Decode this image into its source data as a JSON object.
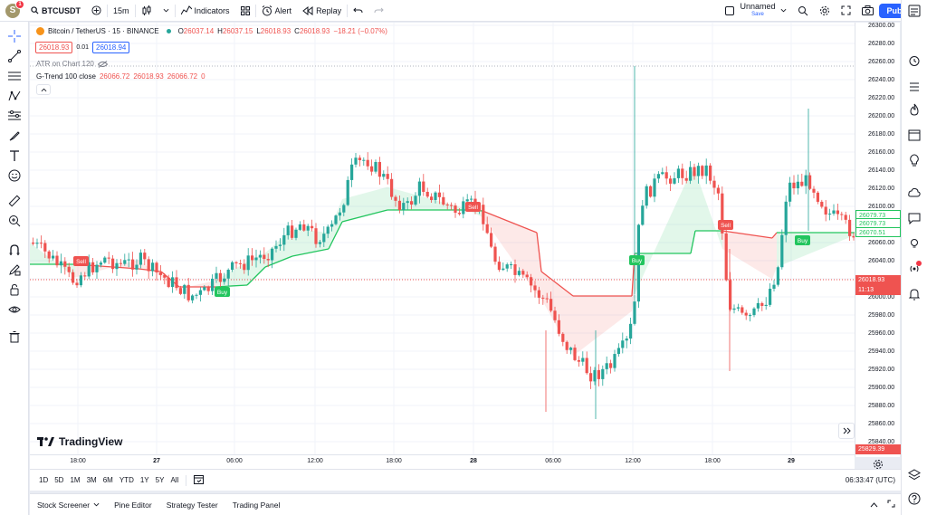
{
  "topbar": {
    "avatar_letter": "S",
    "notif_count": "1",
    "symbol": "BTCUSDT",
    "interval": "15m",
    "indicators_label": "Indicators",
    "alert_label": "Alert",
    "replay_label": "Replay",
    "layout_name": "Unnamed",
    "layout_status": "Save",
    "publish_label": "Publish"
  },
  "legend": {
    "title": "Bitcoin / TetherUS · 15 · BINANCE",
    "o_label": "O",
    "o": "26037.14",
    "h_label": "H",
    "h": "26037.15",
    "l_label": "L",
    "l": "26018.93",
    "c_label": "C",
    "c": "26018.93",
    "change": "−18.21 (−0.07%)",
    "bid": "26018.93",
    "spread": "0.01",
    "ask": "26018.94",
    "atr_label": "ATR on Chart 120",
    "gtrend_label": "G-Trend 100 close",
    "gtrend_v1": "26066.72",
    "gtrend_v2": "26018.93",
    "gtrend_v3": "26066.72",
    "gtrend_v4": "0"
  },
  "watermark": "TradingView",
  "price_scale": {
    "ticks": [
      "26300.00",
      "26280.00",
      "26260.00",
      "26240.00",
      "26220.00",
      "26200.00",
      "26180.00",
      "26160.00",
      "26140.00",
      "26120.00",
      "26100.00",
      "26080.00",
      "26060.00",
      "26040.00",
      "26020.00",
      "26000.00",
      "25980.00",
      "25960.00",
      "25940.00",
      "25920.00",
      "25900.00",
      "25880.00",
      "25860.00",
      "25840.00"
    ],
    "label_green1": "26079.73",
    "label_green2": "26079.73",
    "label_green3": "26070.51",
    "current_price": "26018.93",
    "countdown": "11:13",
    "low_label": "25829.39"
  },
  "time_scale": {
    "ticks": [
      "18:00",
      "27",
      "06:00",
      "12:00",
      "18:00",
      "28",
      "06:00",
      "12:00",
      "18:00",
      "29"
    ]
  },
  "range_bar": {
    "ranges": [
      "1D",
      "5D",
      "1M",
      "3M",
      "6M",
      "YTD",
      "1Y",
      "5Y",
      "All"
    ],
    "clock": "06:33:47 (UTC)"
  },
  "bottom_bar": {
    "tabs": [
      "Stock Screener",
      "Pine Editor",
      "Strategy Tester",
      "Trading Panel"
    ]
  },
  "signals": [
    "Sell",
    "Buy",
    "Sell",
    "Buy",
    "Sell",
    "Buy"
  ],
  "colors": {
    "up": "#26a69a",
    "down": "#ef5350",
    "trend_up": "#22c55e",
    "accent": "#2962ff"
  }
}
